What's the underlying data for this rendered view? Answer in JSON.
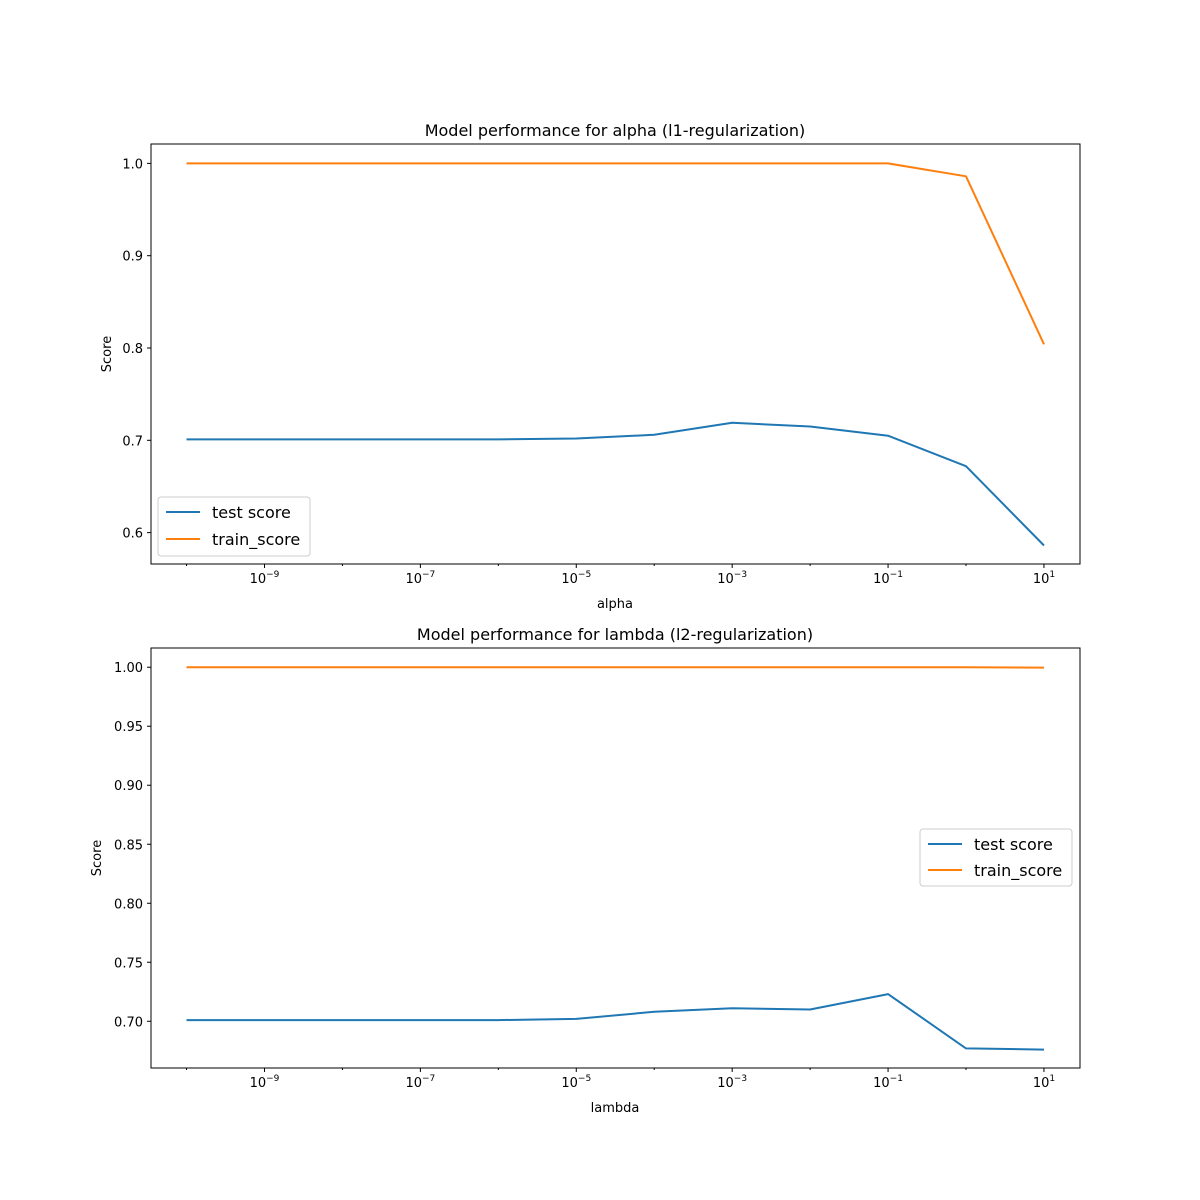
{
  "chart_data": [
    {
      "type": "line",
      "title": "Model performance for alpha (l1-regularization)",
      "xlabel": "alpha",
      "ylabel": "Score",
      "xscale": "log",
      "x": [
        1e-10,
        1e-09,
        1e-08,
        1e-07,
        1e-06,
        1e-05,
        0.0001,
        0.001,
        0.01,
        0.1,
        1,
        10
      ],
      "xlim": [
        3.5e-11,
        29
      ],
      "ylim": [
        0.566,
        1.021
      ],
      "xticks": [
        {
          "base": "10",
          "exp": "−9",
          "value": 1e-09
        },
        {
          "base": "10",
          "exp": "−7",
          "value": 1e-07
        },
        {
          "base": "10",
          "exp": "−5",
          "value": 1e-05
        },
        {
          "base": "10",
          "exp": "−3",
          "value": 0.001
        },
        {
          "base": "10",
          "exp": "−1",
          "value": 0.1
        },
        {
          "base": "10",
          "exp": "1",
          "value": 10
        }
      ],
      "yticks": [
        {
          "label": "0.6",
          "value": 0.6
        },
        {
          "label": "0.7",
          "value": 0.7
        },
        {
          "label": "0.8",
          "value": 0.8
        },
        {
          "label": "0.9",
          "value": 0.9
        },
        {
          "label": "1.0",
          "value": 1.0
        }
      ],
      "series": [
        {
          "name": "test score",
          "color": "#1f77b4",
          "values": [
            0.701,
            0.701,
            0.701,
            0.701,
            0.701,
            0.702,
            0.706,
            0.719,
            0.715,
            0.705,
            0.672,
            0.586
          ]
        },
        {
          "name": "train_score",
          "color": "#ff7f0e",
          "values": [
            1.0,
            1.0,
            1.0,
            1.0,
            1.0,
            1.0,
            1.0,
            1.0,
            1.0,
            1.0,
            0.986,
            0.804
          ]
        }
      ],
      "legend": "lower left",
      "grid": false
    },
    {
      "type": "line",
      "title": "Model performance for lambda (l2-regularization)",
      "xlabel": "lambda",
      "ylabel": "Score",
      "xscale": "log",
      "x": [
        1e-10,
        1e-09,
        1e-08,
        1e-07,
        1e-06,
        1e-05,
        0.0001,
        0.001,
        0.01,
        0.1,
        1,
        10
      ],
      "xlim": [
        3.5e-11,
        29
      ],
      "ylim": [
        0.6604,
        1.0163
      ],
      "xticks": [
        {
          "base": "10",
          "exp": "−9",
          "value": 1e-09
        },
        {
          "base": "10",
          "exp": "−7",
          "value": 1e-07
        },
        {
          "base": "10",
          "exp": "−5",
          "value": 1e-05
        },
        {
          "base": "10",
          "exp": "−3",
          "value": 0.001
        },
        {
          "base": "10",
          "exp": "−1",
          "value": 0.1
        },
        {
          "base": "10",
          "exp": "1",
          "value": 10
        }
      ],
      "yticks": [
        {
          "label": "0.70",
          "value": 0.7
        },
        {
          "label": "0.75",
          "value": 0.75
        },
        {
          "label": "0.80",
          "value": 0.8
        },
        {
          "label": "0.85",
          "value": 0.85
        },
        {
          "label": "0.90",
          "value": 0.9
        },
        {
          "label": "0.95",
          "value": 0.95
        },
        {
          "label": "1.00",
          "value": 1.0
        }
      ],
      "series": [
        {
          "name": "test score",
          "color": "#1f77b4",
          "values": [
            0.701,
            0.701,
            0.701,
            0.701,
            0.701,
            0.702,
            0.708,
            0.711,
            0.71,
            0.723,
            0.677,
            0.676
          ]
        },
        {
          "name": "train_score",
          "color": "#ff7f0e",
          "values": [
            1.0,
            1.0,
            1.0,
            1.0,
            1.0,
            1.0,
            1.0,
            1.0,
            1.0,
            1.0,
            1.0,
            0.9997
          ]
        }
      ],
      "legend": "center right",
      "grid": false
    }
  ]
}
